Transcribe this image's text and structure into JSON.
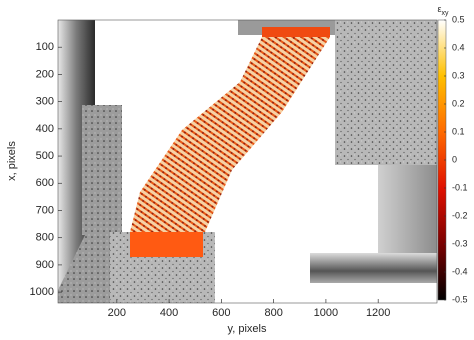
{
  "chart_data": {
    "type": "image",
    "xlabel": "y, pixels",
    "ylabel": "x, pixels",
    "xlim": [
      -25,
      1425
    ],
    "xticks": [
      200,
      400,
      600,
      800,
      1000,
      1200
    ],
    "ylim": [
      0,
      1040
    ],
    "yticks": [
      100,
      200,
      300,
      400,
      500,
      600,
      700,
      800,
      900,
      1000
    ],
    "colorbar": {
      "label": {
        "symbol": "ε",
        "subscript": "xy"
      },
      "lim": [
        -0.5,
        0.5
      ],
      "ticks": [
        0.5,
        0.4,
        0.3,
        0.2,
        0.1,
        0,
        -0.1,
        -0.2,
        -0.3,
        -0.4,
        -0.5
      ],
      "colors": [
        "#000000",
        "#7a0000",
        "#e01000",
        "#ff6a00",
        "#ffc000",
        "#ffffff"
      ]
    }
  }
}
